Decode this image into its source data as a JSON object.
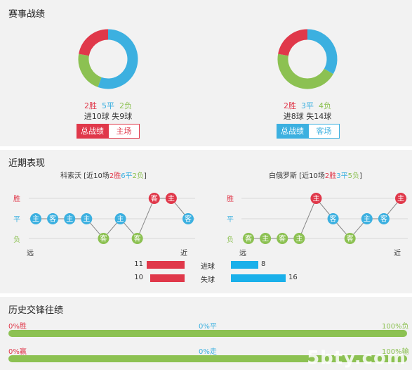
{
  "section1": {
    "title": "赛事战绩",
    "left": {
      "win": "2胜",
      "draw": "5平",
      "loss": "2负",
      "goals": "进10球 失9球",
      "btn_active": "总战绩",
      "btn_inactive": "主场",
      "pie": {
        "win": 2,
        "draw": 5,
        "loss": 2
      }
    },
    "right": {
      "win": "2胜",
      "draw": "3平",
      "loss": "4负",
      "goals": "进8球 失14球",
      "btn_active": "总战绩",
      "btn_inactive": "客场",
      "pie": {
        "win": 2,
        "draw": 3,
        "loss": 4
      }
    }
  },
  "section2": {
    "title": "近期表现",
    "left": {
      "team": "科索沃",
      "meta_pre": "[近10场",
      "win": "2胜",
      "draw": "6平",
      "loss": "2负",
      "meta_post": "]",
      "results": [
        {
          "r": "draw",
          "v": "主"
        },
        {
          "r": "draw",
          "v": "客"
        },
        {
          "r": "draw",
          "v": "主"
        },
        {
          "r": "draw",
          "v": "主"
        },
        {
          "r": "loss",
          "v": "客"
        },
        {
          "r": "draw",
          "v": "主"
        },
        {
          "r": "loss",
          "v": "客"
        },
        {
          "r": "win",
          "v": "客"
        },
        {
          "r": "win",
          "v": "主"
        },
        {
          "r": "draw",
          "v": "客"
        }
      ]
    },
    "right": {
      "team": "白俄罗斯",
      "meta_pre": "[近10场",
      "win": "2胜",
      "draw": "3平",
      "loss": "5负",
      "meta_post": "]",
      "results": [
        {
          "r": "loss",
          "v": "客"
        },
        {
          "r": "loss",
          "v": "主"
        },
        {
          "r": "loss",
          "v": "客"
        },
        {
          "r": "loss",
          "v": "主"
        },
        {
          "r": "win",
          "v": "主"
        },
        {
          "r": "draw",
          "v": "客"
        },
        {
          "r": "loss",
          "v": "客"
        },
        {
          "r": "draw",
          "v": "主"
        },
        {
          "r": "draw",
          "v": "客"
        },
        {
          "r": "win",
          "v": "主"
        }
      ]
    },
    "axis": {
      "win": "胜",
      "draw": "平",
      "loss": "负",
      "far": "远",
      "near": "近"
    },
    "stats": [
      {
        "label": "进球",
        "left": 11,
        "right": 8
      },
      {
        "label": "失球",
        "left": 10,
        "right": 16
      }
    ]
  },
  "section3": {
    "title": "历史交锋往绩",
    "row1": {
      "left": "0%胜",
      "mid": "0%平",
      "right": "100%负",
      "fill": 1.0
    },
    "row2": {
      "left": "0%赢",
      "mid": "0%走",
      "right": "100%输",
      "fill": 1.0
    }
  },
  "watermark": "5bty.com",
  "colors": {
    "win": "#e0384a",
    "draw": "#3cb0e0",
    "loss": "#8cc152"
  }
}
